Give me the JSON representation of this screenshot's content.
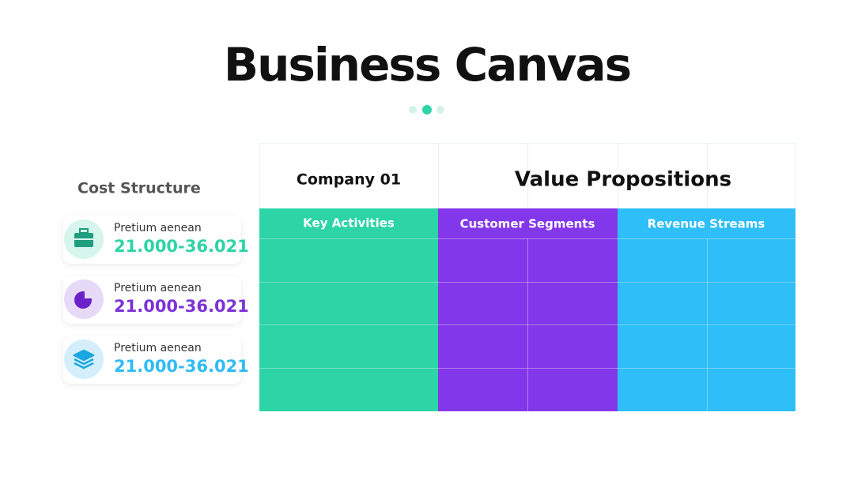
{
  "header": {
    "title": "Business Canvas"
  },
  "cost_structure": {
    "title": "Cost Structure",
    "items": [
      {
        "label": "Pretium aenean",
        "value": "21.000-36.021"
      },
      {
        "label": "Pretium aenean",
        "value": "21.000-36.021"
      },
      {
        "label": "Pretium aenean",
        "value": "21.000-36.021"
      }
    ]
  },
  "table": {
    "company": "Company 01",
    "heading": "Value Propositions",
    "columns": [
      "Key Activities",
      "Customer Segments",
      "Revenue Streams"
    ]
  }
}
